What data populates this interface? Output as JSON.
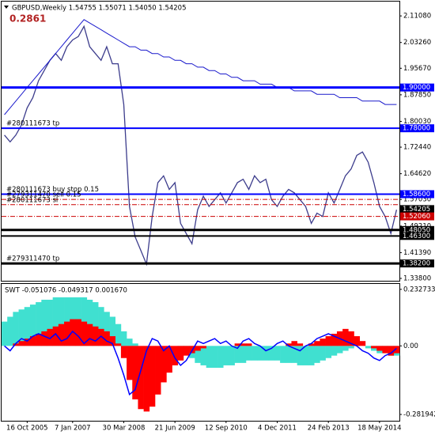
{
  "chart_data": [
    {
      "type": "line",
      "title": "GBPUSD,Weekly  1.54755 1.55071 1.54050 1.54205",
      "badge": "0.2861",
      "ylim": [
        1.331,
        2.153
      ],
      "yticks": [
        {
          "value": 2.1108,
          "label": "2.11080"
        },
        {
          "value": 2.0326,
          "label": "2.03260"
        },
        {
          "value": 1.9567,
          "label": "1.95670"
        },
        {
          "value": 1.8785,
          "label": "1.87850"
        },
        {
          "value": 1.8003,
          "label": "1.80030"
        },
        {
          "value": 1.7244,
          "label": "1.72440"
        },
        {
          "value": 1.6462,
          "label": "1.64620"
        },
        {
          "value": 1.5703,
          "label": "1.57030"
        },
        {
          "value": 1.4921,
          "label": "1.49210"
        },
        {
          "value": 1.4139,
          "label": "1.41390"
        },
        {
          "value": 1.338,
          "label": "1.33800"
        }
      ],
      "series": [
        {
          "color": "#3c3c8c",
          "values": [
            1.76,
            1.74,
            1.76,
            1.79,
            1.84,
            1.87,
            1.92,
            1.95,
            1.98,
            2.0,
            1.98,
            2.02,
            2.04,
            2.05,
            2.08,
            2.02,
            2.0,
            1.98,
            2.02,
            1.97,
            1.97,
            1.85,
            1.55,
            1.46,
            1.42,
            1.38,
            1.52,
            1.62,
            1.64,
            1.6,
            1.62,
            1.5,
            1.47,
            1.44,
            1.54,
            1.58,
            1.55,
            1.57,
            1.59,
            1.56,
            1.59,
            1.62,
            1.63,
            1.6,
            1.64,
            1.62,
            1.63,
            1.57,
            1.55,
            1.58,
            1.6,
            1.59,
            1.57,
            1.55,
            1.5,
            1.53,
            1.52,
            1.59,
            1.56,
            1.6,
            1.64,
            1.66,
            1.7,
            1.71,
            1.68,
            1.62,
            1.55,
            1.52,
            1.47,
            1.54
          ]
        },
        {
          "color": "#1a1acc",
          "values": [
            1.82,
            1.84,
            1.86,
            1.88,
            1.9,
            1.92,
            1.94,
            1.96,
            1.98,
            2.0,
            2.02,
            2.04,
            2.06,
            2.08,
            2.1,
            2.09,
            2.08,
            2.07,
            2.06,
            2.05,
            2.04,
            2.03,
            2.02,
            2.02,
            2.01,
            2.01,
            2.0,
            2.0,
            1.99,
            1.99,
            1.98,
            1.98,
            1.97,
            1.97,
            1.96,
            1.96,
            1.95,
            1.95,
            1.94,
            1.94,
            1.93,
            1.93,
            1.92,
            1.92,
            1.92,
            1.91,
            1.91,
            1.91,
            1.9,
            1.9,
            1.9,
            1.89,
            1.89,
            1.89,
            1.89,
            1.88,
            1.88,
            1.88,
            1.88,
            1.87,
            1.87,
            1.87,
            1.87,
            1.86,
            1.86,
            1.86,
            1.86,
            1.85,
            1.85,
            1.85
          ]
        }
      ],
      "levels": [
        {
          "value": 1.9,
          "axis_label": "1.90000",
          "color": "#0000ff",
          "style": "thick"
        },
        {
          "value": 1.78,
          "axis_label": "1.78000",
          "text": "#280111673 tp",
          "color": "#0000ff",
          "style": "thin"
        },
        {
          "value": 1.586,
          "axis_label": "1.58600",
          "text": "#280111673 buy stop 0.15",
          "color": "#0000ff",
          "style": "thin"
        },
        {
          "value": 1.5705,
          "text": "#279311470 sell 0.15",
          "color": "#cc0000",
          "style": "dashdot"
        },
        {
          "value": 1.555,
          "text": "#280111673 sl",
          "color": "#cc0000",
          "style": "dashdot"
        },
        {
          "value": 1.54205,
          "axis_label": "1.54205",
          "color": "#000000",
          "style": "none"
        },
        {
          "value": 1.5206,
          "axis_label": "1.52060",
          "color": "#cc0000",
          "style": "dashdot"
        },
        {
          "value": 1.4805,
          "axis_label": "1.48050",
          "color": "#000000",
          "style": "thick"
        },
        {
          "value": 1.463,
          "axis_label": "1.46300",
          "color": "#000000",
          "style": "thin"
        },
        {
          "value": 1.382,
          "axis_label": "1.38200",
          "text": "#279311470 tp",
          "color": "#000000",
          "style": "thick"
        }
      ]
    },
    {
      "type": "area",
      "title": "SWT -0.051076 -0.049317 0.001670",
      "categories": [
        null,
        null,
        null,
        null,
        "16 Oct 2005",
        null,
        null,
        null,
        null,
        null,
        null,
        null,
        "7 Jan 2007",
        null,
        null,
        null,
        null,
        null,
        null,
        null,
        null,
        "30 Mar 2008",
        null,
        null,
        null,
        null,
        null,
        null,
        null,
        null,
        "21 Jun 2009",
        null,
        null,
        null,
        null,
        null,
        null,
        null,
        null,
        "12 Sep 2010",
        null,
        null,
        null,
        null,
        null,
        null,
        null,
        null,
        "4 Dec 2011",
        null,
        null,
        null,
        null,
        null,
        null,
        null,
        null,
        "24 Feb 2013",
        null,
        null,
        null,
        null,
        null,
        null,
        null,
        null,
        "18 May 2014",
        null,
        null,
        null
      ],
      "ylim": [
        -0.308,
        0.255
      ],
      "yticks": [
        0.232733,
        {
          "value": 0,
          "label": "0.00"
        },
        -0.281942
      ],
      "series": [
        {
          "type": "area",
          "color": "#40e0d0",
          "values": [
            0.1,
            0.12,
            0.14,
            0.15,
            0.16,
            0.17,
            0.18,
            0.19,
            0.19,
            0.2,
            0.2,
            0.2,
            0.2,
            0.2,
            0.2,
            0.19,
            0.18,
            0.16,
            0.14,
            0.12,
            0.09,
            0.06,
            0.03,
            0.01,
            0,
            0,
            0,
            0,
            0,
            0,
            0,
            -0.01,
            -0.03,
            -0.05,
            -0.07,
            -0.08,
            -0.09,
            -0.09,
            -0.09,
            -0.08,
            -0.08,
            -0.07,
            -0.07,
            -0.06,
            -0.06,
            -0.06,
            -0.06,
            -0.06,
            -0.06,
            -0.07,
            -0.07,
            -0.07,
            -0.08,
            -0.08,
            -0.08,
            -0.07,
            -0.06,
            -0.05,
            -0.04,
            -0.03,
            -0.02,
            -0.01,
            0,
            0,
            -0.01,
            -0.02,
            -0.03,
            -0.03,
            -0.04,
            -0.04
          ]
        },
        {
          "type": "area",
          "color": "#ff0000",
          "values": [
            0,
            0,
            0.01,
            0.02,
            0.03,
            0.04,
            0.05,
            0.06,
            0.07,
            0.08,
            0.09,
            0.1,
            0.11,
            0.11,
            0.1,
            0.09,
            0.08,
            0.07,
            0.06,
            0.04,
            0.01,
            -0.05,
            -0.14,
            -0.22,
            -0.26,
            -0.27,
            -0.25,
            -0.2,
            -0.15,
            -0.11,
            -0.08,
            -0.06,
            -0.04,
            -0.03,
            -0.02,
            -0.01,
            0,
            0,
            0,
            0,
            0,
            0.01,
            0.01,
            0.01,
            0,
            0,
            0,
            0,
            0,
            0,
            0.01,
            0.02,
            0.01,
            0,
            0.01,
            0.02,
            0.03,
            0.04,
            0.05,
            0.06,
            0.07,
            0.06,
            0.04,
            0.02,
            0,
            -0.01,
            -0.02,
            -0.03,
            -0.04,
            -0.03
          ]
        },
        {
          "type": "line",
          "color": "#0000ff",
          "values": [
            0.0,
            -0.02,
            0.01,
            0.03,
            0.02,
            0.04,
            0.05,
            0.04,
            0.03,
            0.05,
            0.02,
            0.03,
            0.06,
            0.04,
            0.01,
            0.03,
            0.02,
            0.04,
            0.02,
            0.01,
            -0.05,
            -0.12,
            -0.2,
            -0.18,
            -0.1,
            -0.02,
            0.03,
            0.02,
            -0.02,
            0.0,
            -0.05,
            -0.08,
            -0.06,
            -0.02,
            0.02,
            0.01,
            0.02,
            0.03,
            0.01,
            0.02,
            0.0,
            -0.01,
            0.02,
            0.03,
            0.01,
            0.0,
            -0.02,
            -0.01,
            0.01,
            0.02,
            0.0,
            -0.01,
            -0.02,
            0.0,
            0.01,
            0.03,
            0.04,
            0.05,
            0.04,
            0.03,
            0.02,
            0.01,
            0.0,
            -0.02,
            -0.03,
            -0.05,
            -0.06,
            -0.04,
            -0.03,
            -0.01
          ]
        }
      ]
    }
  ]
}
